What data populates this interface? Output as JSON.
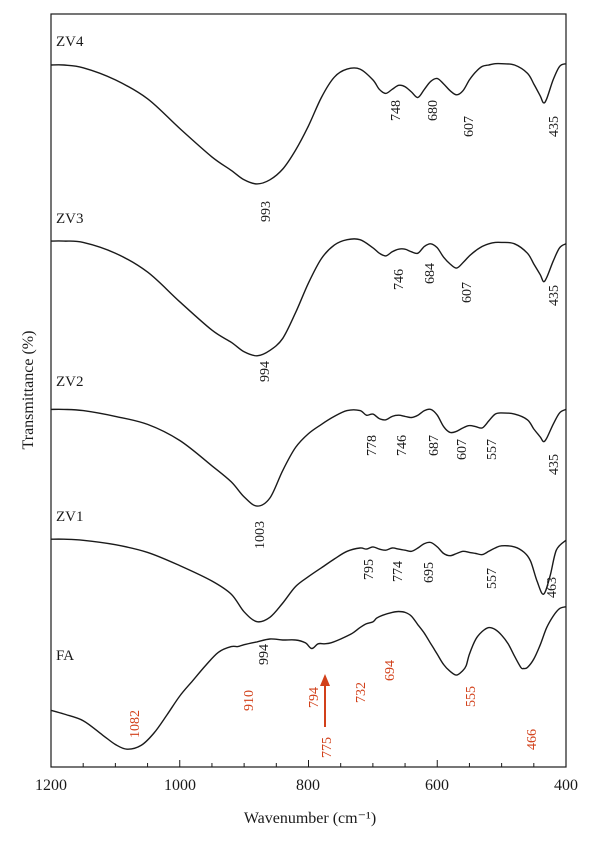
{
  "chart_data": {
    "type": "line",
    "title": "",
    "xlabel": "Wavenumber (cm⁻¹)",
    "ylabel": "Transmittance (%)",
    "xlim": [
      1200,
      400
    ],
    "x_ticks": [
      "1200",
      "1000",
      "800",
      "600",
      "400"
    ],
    "x_tick_values": [
      1200,
      1000,
      800,
      600,
      400
    ],
    "grid": false,
    "legend": "none",
    "colors": {
      "curve": "#1a1a1a",
      "fa_labels": "#d2401a",
      "arrow": "#d2401a"
    },
    "series": [
      {
        "name": "ZV4",
        "x": [
          1200,
          1180,
          1150,
          1100,
          1050,
          1000,
          950,
          920,
          900,
          880,
          860,
          840,
          820,
          800,
          780,
          760,
          740,
          720,
          700,
          690,
          680,
          670,
          660,
          650,
          640,
          630,
          620,
          610,
          600,
          590,
          580,
          570,
          560,
          550,
          540,
          530,
          520,
          510,
          500,
          480,
          460,
          450,
          440,
          435,
          430,
          420,
          410,
          400
        ],
        "y": [
          3,
          3,
          5,
          14,
          28,
          50,
          71,
          81,
          88,
          91,
          88,
          80,
          66,
          48,
          27,
          12,
          6,
          6,
          14,
          21,
          24,
          21,
          18,
          19,
          23,
          27,
          21,
          15,
          13,
          17,
          22,
          25,
          22,
          14,
          8,
          4,
          3,
          2,
          2,
          3,
          9,
          17,
          26,
          31,
          28,
          14,
          4,
          2
        ],
        "peaks": [
          "748",
          "680",
          "607",
          "435",
          "993"
        ]
      },
      {
        "name": "ZV3",
        "x": [
          1200,
          1180,
          1150,
          1100,
          1050,
          1000,
          950,
          920,
          900,
          880,
          860,
          840,
          820,
          800,
          780,
          760,
          740,
          720,
          700,
          690,
          680,
          670,
          660,
          650,
          640,
          630,
          620,
          610,
          600,
          590,
          580,
          570,
          560,
          550,
          540,
          530,
          520,
          510,
          500,
          480,
          460,
          450,
          440,
          435,
          430,
          420,
          410,
          400
        ],
        "y": [
          3,
          3,
          4,
          12,
          26,
          48,
          69,
          78,
          85,
          88,
          84,
          75,
          56,
          34,
          16,
          6,
          2,
          2,
          8,
          12,
          14,
          11,
          9,
          9,
          11,
          12,
          7,
          5,
          8,
          15,
          20,
          23,
          19,
          14,
          10,
          7,
          5,
          4,
          4,
          5,
          12,
          20,
          28,
          33,
          30,
          18,
          8,
          5
        ],
        "peaks": [
          "746",
          "684",
          "607",
          "435",
          "994"
        ]
      },
      {
        "name": "ZV2",
        "x": [
          1200,
          1180,
          1150,
          1100,
          1050,
          1000,
          950,
          920,
          900,
          880,
          860,
          840,
          820,
          800,
          780,
          760,
          740,
          720,
          710,
          700,
          690,
          680,
          670,
          660,
          650,
          640,
          630,
          620,
          610,
          600,
          590,
          580,
          570,
          560,
          550,
          540,
          530,
          520,
          510,
          500,
          480,
          460,
          450,
          440,
          435,
          430,
          420,
          410,
          400
        ],
        "y": [
          3,
          3,
          4,
          9,
          16,
          30,
          52,
          66,
          79,
          87,
          80,
          56,
          36,
          24,
          16,
          9,
          4,
          4,
          8,
          7,
          11,
          12,
          9,
          8,
          9,
          10,
          8,
          4,
          3,
          8,
          18,
          23,
          22,
          19,
          17,
          18,
          19,
          13,
          7,
          6,
          7,
          12,
          20,
          27,
          31,
          28,
          16,
          6,
          3
        ],
        "peaks": [
          "778",
          "746",
          "687",
          "607",
          "557",
          "435",
          "1003"
        ]
      },
      {
        "name": "ZV1",
        "x": [
          1200,
          1180,
          1150,
          1100,
          1050,
          1000,
          950,
          920,
          900,
          880,
          860,
          840,
          820,
          800,
          780,
          760,
          740,
          720,
          710,
          700,
          690,
          680,
          670,
          660,
          650,
          640,
          630,
          620,
          610,
          600,
          590,
          580,
          570,
          560,
          550,
          540,
          530,
          520,
          510,
          500,
          480,
          465,
          455,
          445,
          435,
          425,
          415,
          400
        ],
        "y": [
          2,
          2,
          3,
          7,
          14,
          26,
          40,
          52,
          68,
          77,
          73,
          60,
          45,
          36,
          28,
          20,
          13,
          10,
          11,
          9,
          11,
          12,
          10,
          11,
          12,
          13,
          10,
          6,
          5,
          9,
          15,
          17,
          15,
          13,
          14,
          15,
          16,
          13,
          10,
          8,
          9,
          14,
          22,
          40,
          52,
          36,
          12,
          3
        ],
        "peaks": [
          "795",
          "774",
          "695",
          "557",
          "463",
          "994"
        ]
      },
      {
        "name": "FA",
        "x": [
          1200,
          1180,
          1150,
          1120,
          1100,
          1082,
          1060,
          1040,
          1020,
          1000,
          980,
          960,
          940,
          920,
          910,
          900,
          880,
          860,
          840,
          820,
          805,
          795,
          785,
          775,
          765,
          750,
          732,
          720,
          710,
          700,
          694,
          685,
          670,
          660,
          650,
          640,
          630,
          620,
          610,
          600,
          590,
          580,
          570,
          560,
          555,
          550,
          540,
          530,
          520,
          510,
          500,
          490,
          480,
          470,
          466,
          460,
          450,
          440,
          430,
          420,
          410,
          400
        ],
        "y": [
          75,
          79,
          86,
          101,
          111,
          116,
          112,
          99,
          80,
          60,
          44,
          28,
          14,
          8,
          8,
          6,
          3,
          0,
          1,
          1,
          4,
          10,
          5,
          5,
          4,
          0,
          -6,
          -12,
          -16,
          -18,
          -22,
          -25,
          -28,
          -29,
          -28,
          -24,
          -15,
          -6,
          5,
          16,
          27,
          34,
          38,
          33,
          28,
          16,
          0,
          -8,
          -12,
          -10,
          -4,
          5,
          18,
          30,
          31,
          30,
          21,
          6,
          -12,
          -24,
          -32,
          -34
        ],
        "peaks": [
          "1082",
          "910",
          "794",
          "732",
          "694",
          "555",
          "466"
        ],
        "arrow_label": "775"
      }
    ]
  }
}
